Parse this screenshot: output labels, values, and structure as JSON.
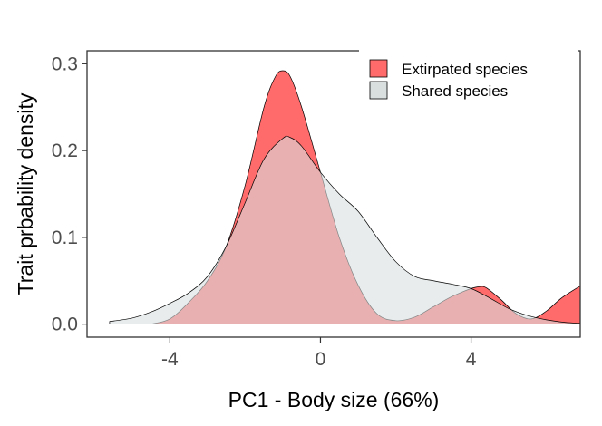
{
  "chart_data": {
    "type": "area",
    "title": "",
    "xlabel": "PC1 - Body size (66%)",
    "ylabel": "Trait prbability density",
    "xlim": [
      -6.2,
      6.9
    ],
    "ylim": [
      -0.015,
      0.315
    ],
    "x_ticks": [
      -4,
      0,
      4
    ],
    "x_tick_labels": [
      "-4",
      "0",
      "4"
    ],
    "y_ticks": [
      0.0,
      0.1,
      0.2,
      0.3
    ],
    "y_tick_labels": [
      "0.0",
      "0.1",
      "0.2",
      "0.3"
    ],
    "grid": false,
    "legend_position": "top-right",
    "series": [
      {
        "name": "Extirpated species",
        "color": "#ff6a6a",
        "x": [
          -4.5,
          -4.0,
          -3.5,
          -3.0,
          -2.5,
          -2.0,
          -1.5,
          -1.2,
          -1.0,
          -0.8,
          -0.5,
          0.0,
          0.5,
          1.0,
          1.5,
          2.0,
          2.5,
          3.0,
          3.5,
          4.0,
          4.2,
          4.4,
          4.8,
          5.2,
          5.6,
          6.0,
          6.4,
          6.9
        ],
        "values": [
          0.0,
          0.006,
          0.025,
          0.05,
          0.09,
          0.16,
          0.25,
          0.285,
          0.292,
          0.285,
          0.25,
          0.175,
          0.1,
          0.045,
          0.012,
          0.004,
          0.008,
          0.02,
          0.032,
          0.041,
          0.043,
          0.042,
          0.028,
          0.012,
          0.006,
          0.015,
          0.03,
          0.044
        ]
      },
      {
        "name": "Shared species",
        "color": "#d9dfdf",
        "x": [
          -5.6,
          -5.0,
          -4.5,
          -4.0,
          -3.5,
          -3.0,
          -2.5,
          -2.0,
          -1.5,
          -1.0,
          -0.8,
          -0.5,
          0.0,
          0.5,
          1.0,
          1.5,
          2.0,
          2.5,
          3.0,
          3.5,
          4.0,
          4.5,
          5.0,
          5.5,
          6.0,
          6.5,
          6.9
        ],
        "values": [
          0.003,
          0.007,
          0.014,
          0.024,
          0.036,
          0.055,
          0.09,
          0.14,
          0.19,
          0.214,
          0.215,
          0.205,
          0.175,
          0.15,
          0.13,
          0.1,
          0.072,
          0.055,
          0.05,
          0.046,
          0.041,
          0.03,
          0.018,
          0.01,
          0.005,
          0.002,
          0.001
        ]
      }
    ]
  }
}
